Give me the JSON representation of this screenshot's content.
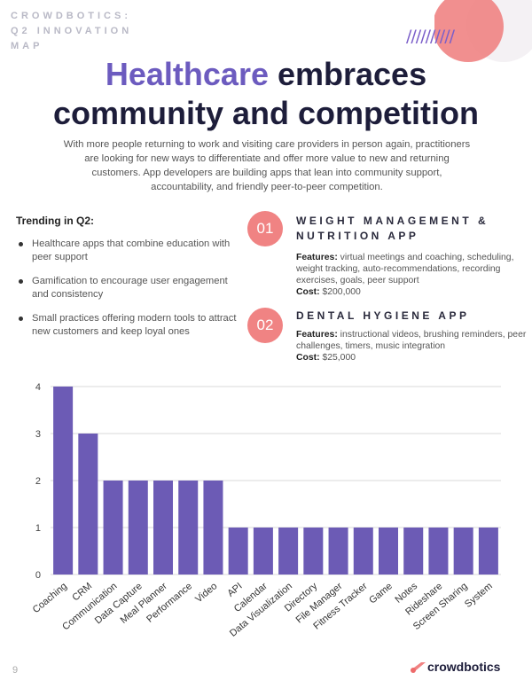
{
  "header": {
    "brand_line1": "CROWDBOTICS:",
    "brand_line2": "Q2 INNOVATION",
    "brand_line3": "MAP",
    "slashes": "//////////"
  },
  "title": {
    "highlight": "Healthcare",
    "line1_rest": " embraces",
    "line2": "community and competition"
  },
  "intro": "With more people returning to work and visiting care providers in person again, practitioners are looking for new ways to differentiate and offer more value to new and returning customers. App developers are building apps that lean into community support, accountability, and friendly peer-to-peer competition.",
  "trending": {
    "heading": "Trending in Q2:",
    "items": [
      "Healthcare apps that combine education with peer support",
      "Gamification to encourage user engagement and consistency",
      "Small practices offering modern tools to attract new customers and keep loyal ones"
    ]
  },
  "apps": [
    {
      "number": "01",
      "title_line1": "WEIGHT MANAGEMENT &",
      "title_line2": "NUTRITION APP",
      "features_label": "Features:",
      "features": " virtual meetings and coaching, scheduling, weight tracking, auto-recommendations, recording exercises, goals, peer support",
      "cost_label": "Cost:",
      "cost": " $200,000"
    },
    {
      "number": "02",
      "title_line1": "DENTAL HYGIENE APP",
      "features_label": "Features:",
      "features": " instructional videos, brushing reminders, peer challenges, timers, music integration",
      "cost_label": "Cost:",
      "cost": " $25,000"
    }
  ],
  "chart_data": {
    "type": "bar",
    "categories": [
      "Coaching",
      "CRM",
      "Communication",
      "Data Capture",
      "Meal Planner",
      "Performance",
      "Video",
      "API",
      "Calendar",
      "Data Visualization",
      "Directory",
      "File Manager",
      "Fitness Tracker",
      "Game",
      "Notes",
      "Rideshare",
      "Screen Sharing",
      "System"
    ],
    "values": [
      4,
      3,
      2,
      2,
      2,
      2,
      2,
      1,
      1,
      1,
      1,
      1,
      1,
      1,
      1,
      1,
      1,
      1
    ],
    "ylim": [
      0,
      4
    ],
    "yticks": [
      "0",
      "1",
      "2",
      "3",
      "4"
    ],
    "grid": true,
    "bar_color": "#6c5bb5"
  },
  "footer": {
    "page_number": "9",
    "brand": "crowdbotics"
  },
  "colors": {
    "accent_purple": "#6c5bbf",
    "accent_coral": "#f08383",
    "title_dark": "#1d1d3a"
  }
}
